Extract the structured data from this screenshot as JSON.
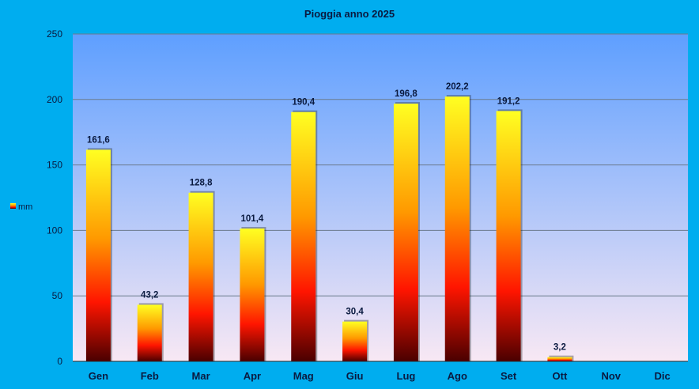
{
  "chart_data": {
    "type": "bar",
    "title": "Pioggia anno 2025",
    "categories": [
      "Gen",
      "Feb",
      "Mar",
      "Apr",
      "Mag",
      "Giu",
      "Lug",
      "Ago",
      "Set",
      "Ott",
      "Nov",
      "Dic"
    ],
    "series": [
      {
        "name": "mm",
        "values": [
          161.6,
          43.2,
          128.8,
          101.4,
          190.4,
          30.4,
          196.8,
          202.2,
          191.2,
          3.2,
          null,
          null
        ],
        "labels": [
          "161,6",
          "43,2",
          "128,8",
          "101,4",
          "190,4",
          "30,4",
          "196,8",
          "202,2",
          "191,2",
          "3,2",
          "",
          ""
        ]
      }
    ],
    "xlabel": "",
    "ylabel": "",
    "ylim": [
      0,
      250
    ],
    "yticks": [
      0,
      50,
      100,
      150,
      200,
      250
    ],
    "grid": true,
    "legend_position": "left",
    "colors": {
      "background": "#00adef",
      "plot_top": "#5e9fff",
      "plot_bottom": "#f8e8f4",
      "bar_top": "#ffff22",
      "bar_mid": "#ff9900",
      "bar_red": "#ff1500",
      "bar_bottom": "#4a0000",
      "gridline": "#6b7a8c"
    }
  }
}
